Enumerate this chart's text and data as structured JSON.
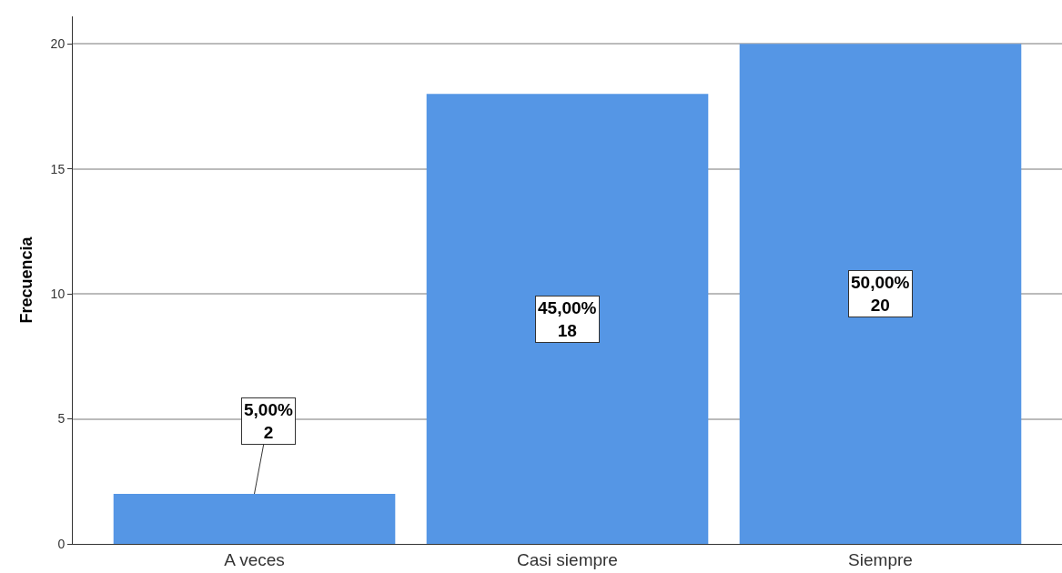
{
  "chart_data": {
    "type": "bar",
    "ylabel": "Frecuencia",
    "categories": [
      "A veces",
      "Casi siempre",
      "Siempre"
    ],
    "values": [
      2,
      18,
      20
    ],
    "value_labels": [
      "5,00%\n2",
      "45,00%\n18",
      "50,00%\n20"
    ],
    "color": "#5596e5",
    "ylim": [
      0,
      21.1
    ],
    "yticks": [
      0,
      5,
      10,
      15,
      20
    ],
    "grid": "y"
  }
}
